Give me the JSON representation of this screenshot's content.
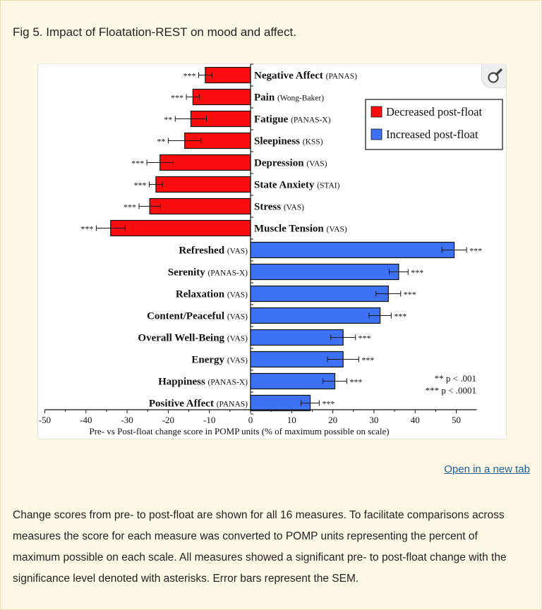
{
  "figure_title": "Fig 5. Impact of Floatation-REST on mood and affect.",
  "open_link_label": "Open in a new tab",
  "caption": "Change scores from pre- to post-float are shown for all 16 measures. To facilitate comparisons across measures the score for each measure was converted to POMP units representing the percent of maximum possible on each scale. All measures showed a significant pre- to post-float change with the significance level denoted with asterisks. Error bars represent the SEM.",
  "zoom_icon": "magnifier-icon",
  "colors": {
    "decreased": "#fc0d0d",
    "increased": "#3d72f5",
    "page_bg": "#fdf8e6",
    "link": "#1a5d9a"
  },
  "chart_data": {
    "type": "bar",
    "orientation": "horizontal",
    "xlabel": "Pre- vs Post-float change score in POMP units (% of maximum possible on scale)",
    "xlim": [
      -50,
      55
    ],
    "xticks": [
      -50,
      -40,
      -30,
      -20,
      -10,
      0,
      10,
      20,
      30,
      40,
      50
    ],
    "legend": {
      "placement": "top-right",
      "entries": [
        {
          "label": "Decreased post-float",
          "color": "#fc0d0d"
        },
        {
          "label": "Increased post-float",
          "color": "#3d72f5"
        }
      ]
    },
    "significance_note": [
      "** p < .001",
      "*** p < .0001"
    ],
    "bars": [
      {
        "name": "Negative Affect",
        "scale": "(PANAS)",
        "value": -11,
        "sem": 1.6,
        "sig": "***"
      },
      {
        "name": "Pain",
        "scale": "(Wong-Baker)",
        "value": -14,
        "sem": 1.6,
        "sig": "***"
      },
      {
        "name": "Fatigue",
        "scale": "(PANAS-X)",
        "value": -14.5,
        "sem": 3.8,
        "sig": "**"
      },
      {
        "name": "Sleepiness",
        "scale": "(KSS)",
        "value": -16,
        "sem": 4,
        "sig": "**"
      },
      {
        "name": "Depression",
        "scale": "(VAS)",
        "value": -22,
        "sem": 3.2,
        "sig": "***"
      },
      {
        "name": "State Anxiety",
        "scale": "(STAI)",
        "value": -23,
        "sem": 1.6,
        "sig": "***"
      },
      {
        "name": "Stress",
        "scale": "(VAS)",
        "value": -24.5,
        "sem": 2.6,
        "sig": "***"
      },
      {
        "name": "Muscle Tension",
        "scale": "(VAS)",
        "value": -34,
        "sem": 3.5,
        "sig": "***"
      },
      {
        "name": "Refreshed",
        "scale": "(VAS)",
        "value": 49.5,
        "sem": 3,
        "sig": "***"
      },
      {
        "name": "Serenity",
        "scale": "(PANAS-X)",
        "value": 36,
        "sem": 2.3,
        "sig": "***"
      },
      {
        "name": "Relaxation",
        "scale": "(VAS)",
        "value": 33.5,
        "sem": 3,
        "sig": "***"
      },
      {
        "name": "Content/Peaceful",
        "scale": "(VAS)",
        "value": 31.5,
        "sem": 2.7,
        "sig": "***"
      },
      {
        "name": "Overall Well-Being",
        "scale": "(VAS)",
        "value": 22.5,
        "sem": 3,
        "sig": "***"
      },
      {
        "name": "Energy",
        "scale": "(VAS)",
        "value": 22.5,
        "sem": 3.8,
        "sig": "***"
      },
      {
        "name": "Happiness",
        "scale": "(PANAS-X)",
        "value": 20.5,
        "sem": 2.9,
        "sig": "***"
      },
      {
        "name": "Positive Affect",
        "scale": "(PANAS)",
        "value": 14.5,
        "sem": 2.2,
        "sig": "***"
      }
    ]
  }
}
